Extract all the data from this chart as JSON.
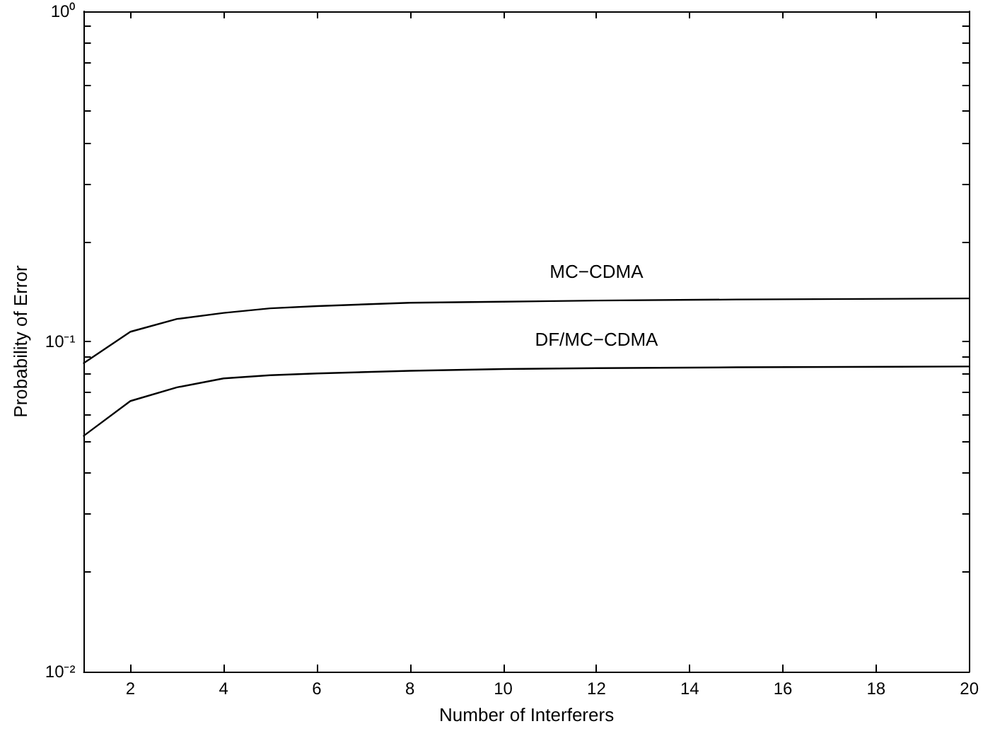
{
  "chart_data": {
    "type": "line",
    "xlabel": "Number of Interferers",
    "ylabel": "Probability of Error",
    "x": [
      1,
      2,
      3,
      4,
      5,
      6,
      8,
      10,
      12,
      15,
      20
    ],
    "series": [
      {
        "name": "MC−CDMA",
        "color": "#000000",
        "values": [
          0.086,
          0.107,
          0.117,
          0.122,
          0.126,
          0.128,
          0.131,
          0.132,
          0.133,
          0.134,
          0.135
        ]
      },
      {
        "name": "DF/MC−CDMA",
        "color": "#000000",
        "values": [
          0.0518,
          0.066,
          0.0726,
          0.0773,
          0.079,
          0.08,
          0.0815,
          0.0825,
          0.083,
          0.0835,
          0.084
        ]
      }
    ],
    "log": "y",
    "xlim": [
      1,
      20
    ],
    "xticks": [
      2,
      4,
      6,
      8,
      10,
      12,
      14,
      16,
      18,
      20
    ],
    "ylim": [
      0.01,
      1
    ],
    "yticks": [
      {
        "value": 0.01,
        "label": "10⁻²"
      },
      {
        "value": 0.02,
        "label": null
      },
      {
        "value": 0.03,
        "label": null
      },
      {
        "value": 0.04,
        "label": null
      },
      {
        "value": 0.05,
        "label": null
      },
      {
        "value": 0.06,
        "label": null
      },
      {
        "value": 0.07,
        "label": null
      },
      {
        "value": 0.08,
        "label": null
      },
      {
        "value": 0.09,
        "label": null
      },
      {
        "value": 0.1,
        "label": "10⁻¹"
      },
      {
        "value": 0.2,
        "label": null
      },
      {
        "value": 0.3,
        "label": null
      },
      {
        "value": 0.4,
        "label": null
      },
      {
        "value": 0.5,
        "label": null
      },
      {
        "value": 0.6,
        "label": null
      },
      {
        "value": 0.7,
        "label": null
      },
      {
        "value": 0.8,
        "label": null
      },
      {
        "value": 0.9,
        "label": null
      },
      {
        "value": 1,
        "label": "10⁰"
      }
    ],
    "grid": false,
    "marker": "none",
    "line_style": "solid"
  }
}
